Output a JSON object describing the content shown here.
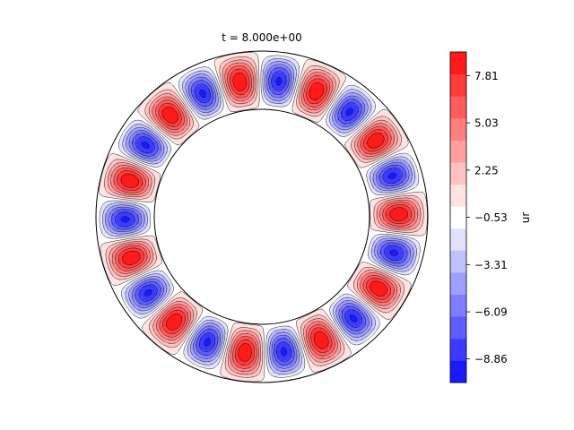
{
  "chart_data": {
    "type": "heatmap",
    "geometry": "annulus",
    "title": "t = 8.000e+00",
    "colorbar": {
      "label": "ur",
      "tick_labels": [
        "7.81",
        "5.03",
        "2.25",
        "−0.53",
        "−3.31",
        "−6.09",
        "−8.86"
      ],
      "tick_values": [
        7.81,
        5.03,
        2.25,
        -0.53,
        -3.31,
        -6.09,
        -8.86
      ],
      "range": [
        -10.25,
        9.2
      ],
      "levels": 14,
      "colors_top_to_bottom": [
        "#ff1a1a",
        "#ff3b3b",
        "#ff5c5c",
        "#ff7e7e",
        "#ff9f9f",
        "#ffc1c1",
        "#ffe2e2",
        "#ffffff",
        "#e2e2ff",
        "#c1c1ff",
        "#9f9fff",
        "#7e7eff",
        "#5c5cff",
        "#3b3bff",
        "#1a1aff"
      ]
    },
    "field": {
      "inner_radius": 0.65,
      "outer_radius": 1.0,
      "mode_count": 11,
      "amplitude": 9.2
    }
  }
}
